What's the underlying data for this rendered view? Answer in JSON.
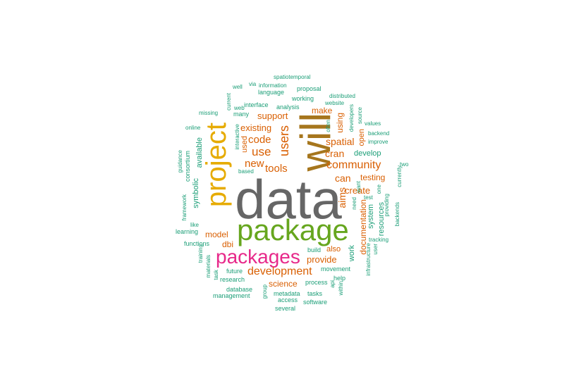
{
  "palette": {
    "dark_gray": "#666666",
    "olive": "#a6761d",
    "green": "#66a61e",
    "gold": "#e6ab02",
    "magenta": "#e7298a",
    "orange": "#d95f02",
    "teal": "#1b9e77"
  },
  "words": [
    {
      "text": "data",
      "color": "dark_gray",
      "orientation": "horizontal"
    },
    {
      "text": "will",
      "color": "olive",
      "orientation": "vertical"
    },
    {
      "text": "package",
      "color": "green",
      "orientation": "horizontal"
    },
    {
      "text": "project",
      "color": "gold",
      "orientation": "vertical"
    },
    {
      "text": "packages",
      "color": "magenta",
      "orientation": "horizontal"
    },
    {
      "text": "users",
      "color": "orange",
      "orientation": "vertical"
    },
    {
      "text": "development",
      "color": "orange",
      "orientation": "horizontal"
    },
    {
      "text": "community",
      "color": "orange",
      "orientation": "horizontal"
    },
    {
      "text": "use",
      "color": "orange",
      "orientation": "horizontal"
    },
    {
      "text": "code",
      "color": "orange",
      "orientation": "horizontal"
    },
    {
      "text": "new",
      "color": "orange",
      "orientation": "horizontal"
    },
    {
      "text": "tools",
      "color": "orange",
      "orientation": "horizontal"
    },
    {
      "text": "spatial",
      "color": "orange",
      "orientation": "horizontal"
    },
    {
      "text": "cran",
      "color": "orange",
      "orientation": "horizontal"
    },
    {
      "text": "can",
      "color": "orange",
      "orientation": "horizontal"
    },
    {
      "text": "aims",
      "color": "orange",
      "orientation": "vertical"
    },
    {
      "text": "create",
      "color": "orange",
      "orientation": "horizontal"
    },
    {
      "text": "existing",
      "color": "orange",
      "orientation": "horizontal"
    },
    {
      "text": "support",
      "color": "orange",
      "orientation": "horizontal"
    },
    {
      "text": "make",
      "color": "orange",
      "orientation": "horizontal"
    },
    {
      "text": "using",
      "color": "orange",
      "orientation": "vertical"
    },
    {
      "text": "testing",
      "color": "orange",
      "orientation": "horizontal"
    },
    {
      "text": "provide",
      "color": "orange",
      "orientation": "horizontal"
    },
    {
      "text": "science",
      "color": "orange",
      "orientation": "horizontal"
    },
    {
      "text": "model",
      "color": "orange",
      "orientation": "horizontal"
    },
    {
      "text": "dbi",
      "color": "orange",
      "orientation": "horizontal"
    },
    {
      "text": "also",
      "color": "orange",
      "orientation": "horizontal"
    },
    {
      "text": "documentation",
      "color": "orange",
      "orientation": "vertical"
    },
    {
      "text": "used",
      "color": "orange",
      "orientation": "vertical"
    },
    {
      "text": "open",
      "color": "orange",
      "orientation": "vertical"
    },
    {
      "text": "develop",
      "color": "teal",
      "orientation": "horizontal"
    },
    {
      "text": "available",
      "color": "teal",
      "orientation": "vertical"
    },
    {
      "text": "symbolic",
      "color": "teal",
      "orientation": "vertical"
    },
    {
      "text": "system",
      "color": "teal",
      "orientation": "vertical"
    },
    {
      "text": "work",
      "color": "teal",
      "orientation": "vertical"
    },
    {
      "text": "resources",
      "color": "teal",
      "orientation": "vertical"
    },
    {
      "text": "build",
      "color": "teal",
      "orientation": "horizontal"
    },
    {
      "text": "movement",
      "color": "teal",
      "orientation": "horizontal"
    },
    {
      "text": "future",
      "color": "teal",
      "orientation": "horizontal"
    },
    {
      "text": "research",
      "color": "teal",
      "orientation": "horizontal"
    },
    {
      "text": "database",
      "color": "teal",
      "orientation": "horizontal"
    },
    {
      "text": "management",
      "color": "teal",
      "orientation": "horizontal"
    },
    {
      "text": "metadata",
      "color": "teal",
      "orientation": "horizontal"
    },
    {
      "text": "access",
      "color": "teal",
      "orientation": "horizontal"
    },
    {
      "text": "several",
      "color": "teal",
      "orientation": "horizontal"
    },
    {
      "text": "tasks",
      "color": "teal",
      "orientation": "horizontal"
    },
    {
      "text": "software",
      "color": "teal",
      "orientation": "horizontal"
    },
    {
      "text": "process",
      "color": "teal",
      "orientation": "horizontal"
    },
    {
      "text": "help",
      "color": "teal",
      "orientation": "horizontal"
    },
    {
      "text": "api",
      "color": "teal",
      "orientation": "vertical"
    },
    {
      "text": "within",
      "color": "teal",
      "orientation": "vertical"
    },
    {
      "text": "group",
      "color": "teal",
      "orientation": "vertical"
    },
    {
      "text": "infrastructure",
      "color": "teal",
      "orientation": "vertical"
    },
    {
      "text": "user",
      "color": "teal",
      "orientation": "vertical"
    },
    {
      "text": "tracking",
      "color": "teal",
      "orientation": "horizontal"
    },
    {
      "text": "backends",
      "color": "teal",
      "orientation": "vertical"
    },
    {
      "text": "providing",
      "color": "teal",
      "orientation": "vertical"
    },
    {
      "text": "currently",
      "color": "teal",
      "orientation": "vertical"
    },
    {
      "text": "test",
      "color": "teal",
      "orientation": "horizontal"
    },
    {
      "text": "need",
      "color": "teal",
      "orientation": "vertical"
    },
    {
      "text": "want",
      "color": "teal",
      "orientation": "vertical"
    },
    {
      "text": "one",
      "color": "teal",
      "orientation": "vertical"
    },
    {
      "text": "two",
      "color": "teal",
      "orientation": "horizontal"
    },
    {
      "text": "improve",
      "color": "teal",
      "orientation": "horizontal"
    },
    {
      "text": "backend",
      "color": "teal",
      "orientation": "horizontal"
    },
    {
      "text": "values",
      "color": "teal",
      "orientation": "horizontal"
    },
    {
      "text": "source",
      "color": "teal",
      "orientation": "vertical"
    },
    {
      "text": "developers",
      "color": "teal",
      "orientation": "vertical"
    },
    {
      "text": "website",
      "color": "teal",
      "orientation": "horizontal"
    },
    {
      "text": "distributed",
      "color": "teal",
      "orientation": "horizontal"
    },
    {
      "text": "often",
      "color": "teal",
      "orientation": "vertical"
    },
    {
      "text": "working",
      "color": "teal",
      "orientation": "horizontal"
    },
    {
      "text": "analysis",
      "color": "teal",
      "orientation": "horizontal"
    },
    {
      "text": "interface",
      "color": "teal",
      "orientation": "horizontal"
    },
    {
      "text": "many",
      "color": "teal",
      "orientation": "horizontal"
    },
    {
      "text": "web",
      "color": "teal",
      "orientation": "horizontal"
    },
    {
      "text": "current",
      "color": "teal",
      "orientation": "vertical"
    },
    {
      "text": "well",
      "color": "teal",
      "orientation": "horizontal"
    },
    {
      "text": "via",
      "color": "teal",
      "orientation": "horizontal"
    },
    {
      "text": "information",
      "color": "teal",
      "orientation": "horizontal"
    },
    {
      "text": "language",
      "color": "teal",
      "orientation": "horizontal"
    },
    {
      "text": "proposal",
      "color": "teal",
      "orientation": "horizontal"
    },
    {
      "text": "spatiotemporal",
      "color": "teal",
      "orientation": "horizontal"
    },
    {
      "text": "missing",
      "color": "teal",
      "orientation": "horizontal"
    },
    {
      "text": "online",
      "color": "teal",
      "orientation": "horizontal"
    },
    {
      "text": "interactive",
      "color": "teal",
      "orientation": "vertical"
    },
    {
      "text": "based",
      "color": "teal",
      "orientation": "horizontal"
    },
    {
      "text": "guidance",
      "color": "teal",
      "orientation": "vertical"
    },
    {
      "text": "consortium",
      "color": "teal",
      "orientation": "vertical"
    },
    {
      "text": "framework",
      "color": "teal",
      "orientation": "vertical"
    },
    {
      "text": "like",
      "color": "teal",
      "orientation": "horizontal"
    },
    {
      "text": "learning",
      "color": "teal",
      "orientation": "horizontal"
    },
    {
      "text": "functions",
      "color": "teal",
      "orientation": "horizontal"
    },
    {
      "text": "training",
      "color": "teal",
      "orientation": "vertical"
    },
    {
      "text": "materials",
      "color": "teal",
      "orientation": "vertical"
    },
    {
      "text": "task",
      "color": "teal",
      "orientation": "vertical"
    }
  ]
}
